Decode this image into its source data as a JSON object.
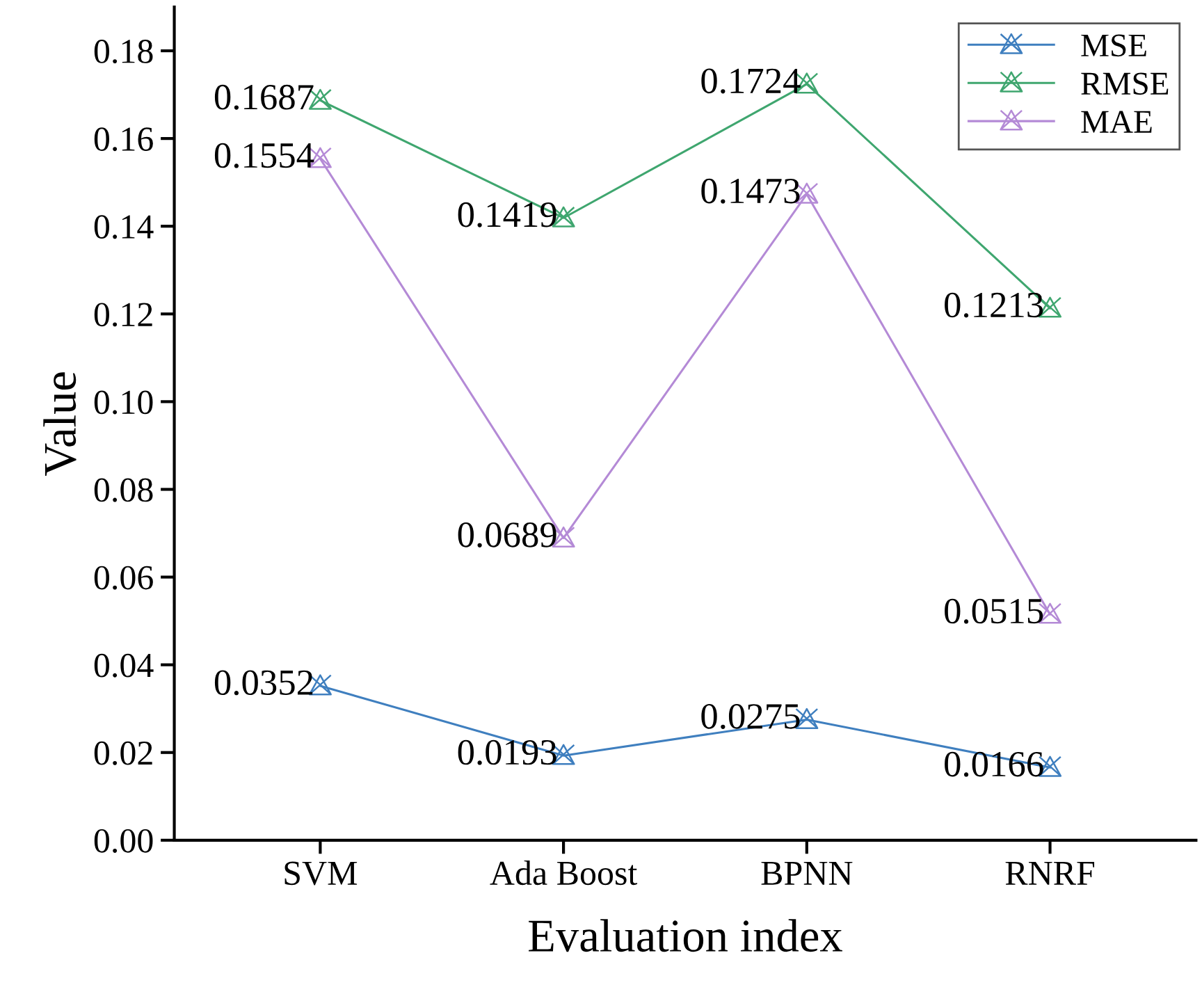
{
  "chart_data": {
    "type": "line",
    "xlabel": "Evaluation index",
    "ylabel": "Value",
    "categories": [
      "SVM",
      "Ada Boost",
      "BPNN",
      "RNRF"
    ],
    "series": [
      {
        "name": "MSE",
        "color": "#3f7fbf",
        "values": [
          0.0352,
          0.0193,
          0.0275,
          0.0166
        ]
      },
      {
        "name": "RMSE",
        "color": "#3fa66f",
        "values": [
          0.1687,
          0.1419,
          0.1724,
          0.1213
        ]
      },
      {
        "name": "MAE",
        "color": "#b48ad6",
        "values": [
          0.1554,
          0.0689,
          0.1473,
          0.0515
        ]
      }
    ],
    "ylim": [
      0,
      0.19
    ],
    "yticks": [
      {
        "value": 0,
        "label": "0.00"
      },
      {
        "value": 0.02,
        "label": "0.02"
      },
      {
        "value": 0.04,
        "label": "0.04"
      },
      {
        "value": 0.06,
        "label": "0.06"
      },
      {
        "value": 0.08,
        "label": "0.08"
      },
      {
        "value": 0.1,
        "label": "0.10"
      },
      {
        "value": 0.12,
        "label": "0.12"
      },
      {
        "value": 0.14,
        "label": "0.14"
      },
      {
        "value": 0.16,
        "label": "0.16"
      },
      {
        "value": 0.18,
        "label": "0.18"
      }
    ],
    "data_labels": true,
    "legend": "top right",
    "grid": false,
    "marker": "triangle",
    "line_style": "solid"
  }
}
